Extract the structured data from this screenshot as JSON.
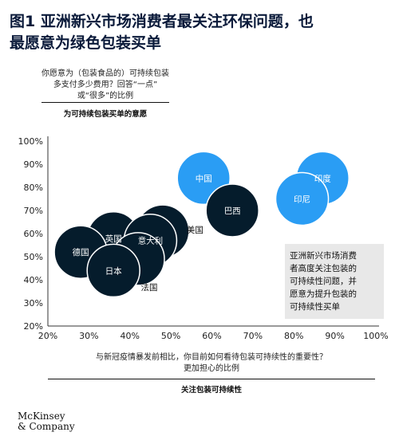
{
  "title_line1": "图1 亚洲新兴市场消费者最关注环保问题，也",
  "title_line2": "最愿意为绿色包装买单",
  "y_question_line1": "你愿意为（包装食品的）可持续包装",
  "y_question_line2": "多支付多少费用？回答“一点”",
  "y_question_line3": "或“很多”的比例",
  "y_axis_title": "为可持续包装买单的意愿",
  "x_question_line1": "与新冠疫情暴发前相比，你目前如何看待包装可持续性的重要性？",
  "x_question_line2": "更加担心的比例",
  "x_axis_title": "关注包装可持续性",
  "annotation_line1": "亚洲新兴市场消费",
  "annotation_line2": "者高度关注包装的",
  "annotation_line3": "可持续性问题，并",
  "annotation_line4": "愿意为提升包装的",
  "annotation_line5": "可持续性买单",
  "logo_line1": "McKinsey",
  "logo_line2": "& Company",
  "colors": {
    "emerging": "#2a9df4",
    "developed": "#051c2c",
    "label_light": "#ffffff",
    "text": "#111111"
  },
  "chart_data": {
    "type": "scatter",
    "xlim": [
      20,
      100
    ],
    "ylim": [
      20,
      100
    ],
    "x_ticks": [
      "20%",
      "30%",
      "40%",
      "50%",
      "60%",
      "70%",
      "80%",
      "90%",
      "100%"
    ],
    "y_ticks": [
      "20%",
      "30%",
      "40%",
      "50%",
      "60%",
      "70%",
      "80%",
      "90%",
      "100%"
    ],
    "grid": false,
    "points": [
      {
        "name": "中国",
        "x": 58,
        "y": 84,
        "group": "emerging"
      },
      {
        "name": "印度",
        "x": 87,
        "y": 84,
        "group": "emerging"
      },
      {
        "name": "印尼",
        "x": 82,
        "y": 75,
        "group": "emerging"
      },
      {
        "name": "巴西",
        "x": 65,
        "y": 70,
        "group": "developed"
      },
      {
        "name": "美国",
        "x": 48,
        "y": 61,
        "group": "developed",
        "label_outside": true
      },
      {
        "name": "英国",
        "x": 36,
        "y": 58,
        "group": "developed"
      },
      {
        "name": "意大利",
        "x": 45,
        "y": 57,
        "group": "developed"
      },
      {
        "name": "德国",
        "x": 28,
        "y": 52,
        "group": "developed"
      },
      {
        "name": "法国",
        "x": 42,
        "y": 49,
        "group": "developed",
        "label_outside": true
      },
      {
        "name": "日本",
        "x": 36,
        "y": 44,
        "group": "developed"
      }
    ]
  }
}
